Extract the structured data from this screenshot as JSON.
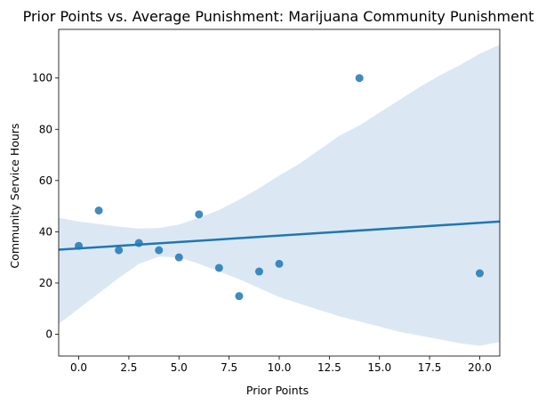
{
  "chart_data": {
    "type": "scatter",
    "title": "Prior Points vs. Average Punishment: Marijuana Community Punishment",
    "xlabel": "Prior Points",
    "ylabel": "Community Service Hours",
    "xlim": [
      -1,
      21
    ],
    "ylim": [
      -8.5,
      119
    ],
    "x_ticks": [
      0.0,
      2.5,
      5.0,
      7.5,
      10.0,
      12.5,
      15.0,
      17.5,
      20.0
    ],
    "x_tick_labels": [
      "0.0",
      "2.5",
      "5.0",
      "7.5",
      "10.0",
      "12.5",
      "15.0",
      "17.5",
      "20.0"
    ],
    "y_ticks": [
      0,
      20,
      40,
      60,
      80,
      100
    ],
    "y_tick_labels": [
      "0",
      "20",
      "40",
      "60",
      "80",
      "100"
    ],
    "grid": false,
    "points": {
      "x": [
        0,
        1,
        2,
        3,
        4,
        5,
        6,
        7,
        8,
        9,
        10,
        14,
        20
      ],
      "y": [
        34.5,
        48.3,
        32.8,
        35.6,
        32.8,
        30.0,
        46.8,
        25.9,
        14.9,
        24.5,
        27.5,
        100.0,
        23.8
      ]
    },
    "regression_line": {
      "x": [
        -1,
        21
      ],
      "y": [
        33.0,
        44.0
      ]
    },
    "confidence_band": {
      "x": [
        -1,
        0,
        1,
        2,
        3,
        4,
        5,
        6,
        7,
        8,
        9,
        10,
        11,
        12,
        13,
        14,
        15,
        16,
        17,
        18,
        19,
        20,
        21
      ],
      "upper": [
        45.5,
        44.0,
        43.0,
        42.0,
        41.3,
        41.5,
        42.8,
        45.5,
        48.5,
        52.5,
        57.0,
        62.0,
        66.5,
        72.0,
        77.5,
        81.5,
        86.5,
        91.5,
        96.5,
        101.0,
        105.0,
        109.5,
        113.0
      ],
      "lower": [
        4.0,
        10.0,
        16.0,
        22.0,
        27.5,
        30.3,
        30.0,
        27.5,
        24.5,
        21.5,
        18.0,
        14.5,
        12.0,
        9.5,
        7.0,
        5.0,
        3.0,
        1.0,
        -0.5,
        -2.0,
        -3.5,
        -4.5,
        -3.0
      ]
    },
    "colors": {
      "points": "#1f77b4",
      "line": "#1f77b4",
      "band": "#dbe8f4"
    }
  }
}
